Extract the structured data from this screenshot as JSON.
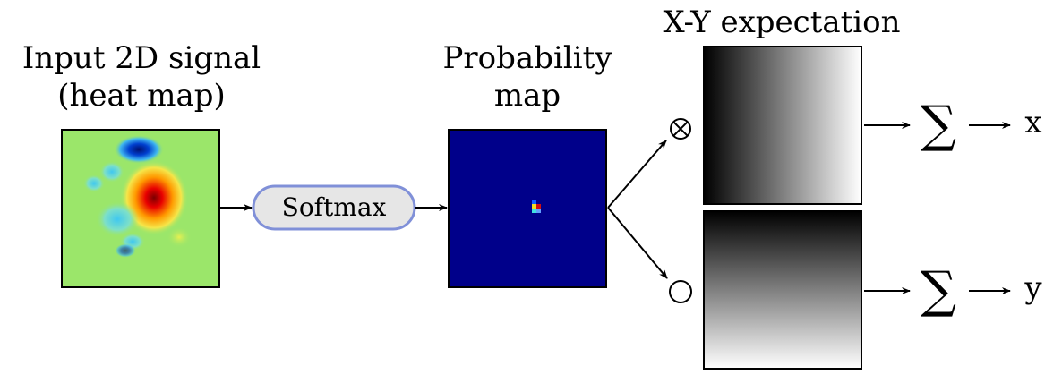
{
  "labels": {
    "input_line1": "Input 2D signal",
    "input_line2": "(heat map)",
    "softmax": "Softmax",
    "prob_line1": "Probability",
    "prob_line2": "map",
    "expectation": "X-Y expectation",
    "multiply_symbol": "⊗",
    "sum_symbol": "∑",
    "out_x": "x",
    "out_y": "y"
  },
  "colors": {
    "softmax_fill": "#e6e6e6",
    "softmax_border": "#8090d8",
    "prob_background": "#00008a",
    "heatmap_background": "#9be66a"
  }
}
